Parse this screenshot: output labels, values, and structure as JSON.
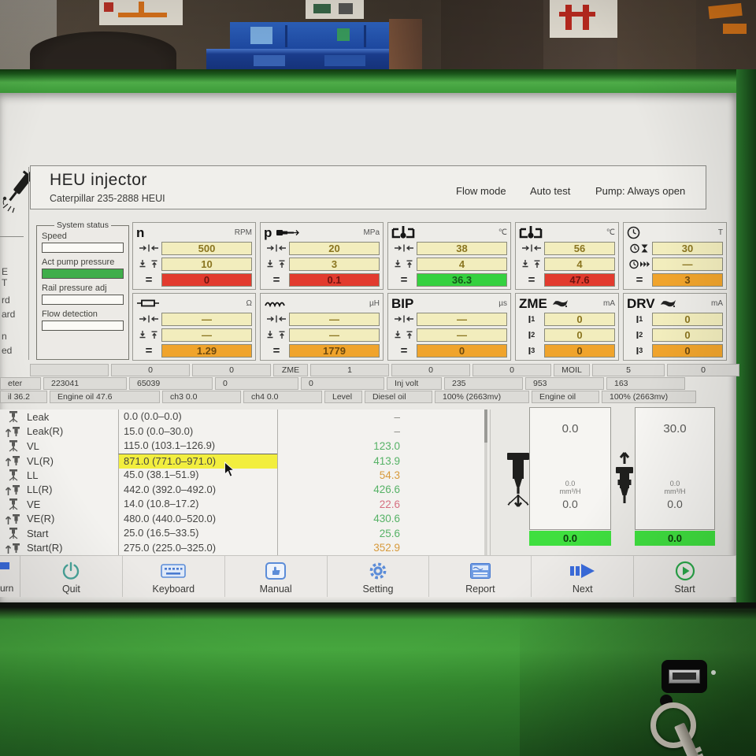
{
  "header": {
    "title": "HEU injector",
    "subtitle": "Caterpillar  235-2888  HEUI",
    "modes": [
      "Flow mode",
      "Auto test",
      "Pump: Always open"
    ]
  },
  "system_status": {
    "title": "System status",
    "items": [
      {
        "label": "Speed",
        "filled": false
      },
      {
        "label": "Act pump pressure",
        "filled": true
      },
      {
        "label": "Rail pressure adj",
        "filled": false
      },
      {
        "label": "Flow detection",
        "filled": false
      }
    ]
  },
  "gauges": {
    "row1": [
      {
        "id": "speed",
        "symbol": "n",
        "icon": null,
        "unit": "RPM",
        "rows": [
          {
            "icon": "target-icon",
            "value": "500",
            "state": "input"
          },
          {
            "icon": "tolerance-icon",
            "value": "10",
            "state": "input"
          },
          {
            "icon": "equals-icon",
            "value": "0",
            "state": "bad"
          }
        ]
      },
      {
        "id": "pressure",
        "symbol": "p",
        "icon": "injector-horizontal-icon",
        "unit": "MPa",
        "rows": [
          {
            "icon": "target-icon",
            "value": "20",
            "state": "input"
          },
          {
            "icon": "tolerance-icon",
            "value": "3",
            "state": "input"
          },
          {
            "icon": "equals-icon",
            "value": "0.1",
            "state": "bad"
          }
        ]
      },
      {
        "id": "oil-temp-1",
        "symbol": "",
        "icon": "oil-temp-icon",
        "unit": "℃",
        "rows": [
          {
            "icon": "target-icon",
            "value": "38",
            "state": "input"
          },
          {
            "icon": "tolerance-icon",
            "value": "4",
            "state": "input"
          },
          {
            "icon": "equals-icon",
            "value": "36.3",
            "state": "good"
          }
        ]
      },
      {
        "id": "oil-temp-2",
        "symbol": "",
        "icon": "oil-temp-icon",
        "unit": "℃",
        "rows": [
          {
            "icon": "target-icon",
            "value": "56",
            "state": "input"
          },
          {
            "icon": "tolerance-icon",
            "value": "4",
            "state": "input"
          },
          {
            "icon": "equals-icon",
            "value": "47.6",
            "state": "bad"
          }
        ]
      },
      {
        "id": "timer",
        "symbol": "",
        "icon": "clock-icon",
        "unit": "T",
        "rows": [
          {
            "icon": "clock-hourglass-icon",
            "value": "30",
            "state": "input"
          },
          {
            "icon": "clock-forward-icon",
            "value": "—",
            "state": "input"
          },
          {
            "icon": "equals-icon",
            "value": "3",
            "state": "warn"
          }
        ]
      }
    ],
    "row2": [
      {
        "id": "resistance",
        "symbol": "",
        "icon": "resistor-icon",
        "unit": "Ω",
        "rows": [
          {
            "icon": "target-icon",
            "value": "—",
            "state": "input"
          },
          {
            "icon": "tolerance-icon",
            "value": "—",
            "state": "input"
          },
          {
            "icon": "equals-icon",
            "value": "1.29",
            "state": "warn"
          }
        ]
      },
      {
        "id": "inductance",
        "symbol": "",
        "icon": "coil-icon",
        "unit": "µH",
        "rows": [
          {
            "icon": "target-icon",
            "value": "—",
            "state": "input"
          },
          {
            "icon": "tolerance-icon",
            "value": "—",
            "state": "input"
          },
          {
            "icon": "equals-icon",
            "value": "1779",
            "state": "warn"
          }
        ]
      },
      {
        "id": "bip",
        "symbol": "BIP",
        "icon": null,
        "unit": "µs",
        "rows": [
          {
            "icon": "target-icon",
            "value": "—",
            "state": "input"
          },
          {
            "icon": "tolerance-icon",
            "value": "—",
            "state": "input"
          },
          {
            "icon": "equals-icon",
            "value": "0",
            "state": "warn"
          }
        ]
      },
      {
        "id": "zme",
        "symbol": "ZME",
        "icon": "valve-icon",
        "unit": "mA",
        "rows": [
          {
            "icon": "i1-label",
            "value": "0",
            "state": "input"
          },
          {
            "icon": "i2-label",
            "value": "0",
            "state": "input"
          },
          {
            "icon": "i3-label",
            "value": "0",
            "state": "warn"
          }
        ]
      },
      {
        "id": "drv",
        "symbol": "DRV",
        "icon": "valve-icon",
        "unit": "mA",
        "rows": [
          {
            "icon": "i1-label",
            "value": "0",
            "state": "input"
          },
          {
            "icon": "i2-label",
            "value": "0",
            "state": "input"
          },
          {
            "icon": "i3-label",
            "value": "0",
            "state": "warn"
          }
        ]
      }
    ]
  },
  "status_rows": {
    "row1": [
      "",
      "0",
      "0",
      "ZME",
      "1",
      "0",
      "0",
      "MOIL",
      "5",
      "0"
    ],
    "row2": [
      "eter",
      "223041",
      "65039",
      "0",
      "0",
      "Inj volt",
      "235",
      "953",
      "163"
    ],
    "row3": [
      "il 36.2",
      "Engine oil 47.6",
      "ch3 0.0",
      "ch4 0.0",
      "Level",
      "Diesel oil",
      "100% (2663mv)",
      "Engine oil",
      "100% (2663mv)"
    ]
  },
  "test_table": {
    "rows": [
      {
        "icon": "injector-spray-icon",
        "label": "Leak",
        "range": "0.0 (0.0–0.0)",
        "value": "–",
        "color": "gray",
        "highlight": false
      },
      {
        "icon": "injector-lift-icon",
        "label": "Leak(R)",
        "range": "15.0 (0.0–30.0)",
        "value": "–",
        "color": "gray",
        "highlight": false
      },
      {
        "icon": "injector-spray-icon",
        "label": "VL",
        "range": "115.0 (103.1–126.9)",
        "value": "123.0",
        "color": "green",
        "highlight": false
      },
      {
        "icon": "injector-lift-icon",
        "label": "VL(R)",
        "range": "871.0 (771.0–971.0)",
        "value": "413.9",
        "color": "green",
        "highlight": true
      },
      {
        "icon": "injector-spray-icon",
        "label": "LL",
        "range": "45.0 (38.1–51.9)",
        "value": "54.3",
        "color": "orange",
        "highlight": false
      },
      {
        "icon": "injector-lift-icon",
        "label": "LL(R)",
        "range": "442.0 (392.0–492.0)",
        "value": "426.6",
        "color": "green",
        "highlight": false
      },
      {
        "icon": "injector-spray-icon",
        "label": "VE",
        "range": "14.0 (10.8–17.2)",
        "value": "22.6",
        "color": "red",
        "highlight": false
      },
      {
        "icon": "injector-lift-icon",
        "label": "VE(R)",
        "range": "480.0 (440.0–520.0)",
        "value": "430.6",
        "color": "green",
        "highlight": false
      },
      {
        "icon": "injector-spray-icon",
        "label": "Start",
        "range": "25.0 (16.5–33.5)",
        "value": "25.6",
        "color": "green",
        "highlight": false
      },
      {
        "icon": "injector-lift-icon",
        "label": "Start(R)",
        "range": "275.0 (225.0–325.0)",
        "value": "352.9",
        "color": "orange",
        "highlight": false
      }
    ]
  },
  "flow_gauges": [
    {
      "icon": "injector-spray-down-icon",
      "top_value": "0.0",
      "rate_top": "0.0",
      "rate_unit": "mm³/H",
      "rate_value": "0.0",
      "bar_value": "0.0"
    },
    {
      "icon": "injector-lift-up-icon",
      "top_value": "30.0",
      "rate_top": "0.0",
      "rate_unit": "mm³/H",
      "rate_value": "0.0",
      "bar_value": "0.0"
    }
  ],
  "toolbar": {
    "partial_button": {
      "label": "urn"
    },
    "buttons": [
      {
        "label": "Quit",
        "icon": "power-icon"
      },
      {
        "label": "Keyboard",
        "icon": "keyboard-icon"
      },
      {
        "label": "Manual",
        "icon": "manual-icon"
      },
      {
        "label": "Setting",
        "icon": "gear-icon"
      },
      {
        "label": "Report",
        "icon": "report-icon"
      },
      {
        "label": "Next",
        "icon": "next-icon"
      },
      {
        "label": "Start",
        "icon": "start-icon"
      }
    ]
  },
  "fragments": [
    "E",
    "T",
    "rd",
    "ard",
    "n",
    "ed"
  ],
  "colors": {
    "bezel_green": "#43a23c",
    "input_cell": "#f2edbd",
    "bad_cell": "#e23b2e",
    "good_cell": "#35d13f",
    "warn_cell": "#f0a42c",
    "bar_green": "#3fdf3f",
    "highlight_yellow": "#f2ee3e",
    "toolbar_icon_blue": "#5b8cd8",
    "start_green": "#2aa84a"
  }
}
